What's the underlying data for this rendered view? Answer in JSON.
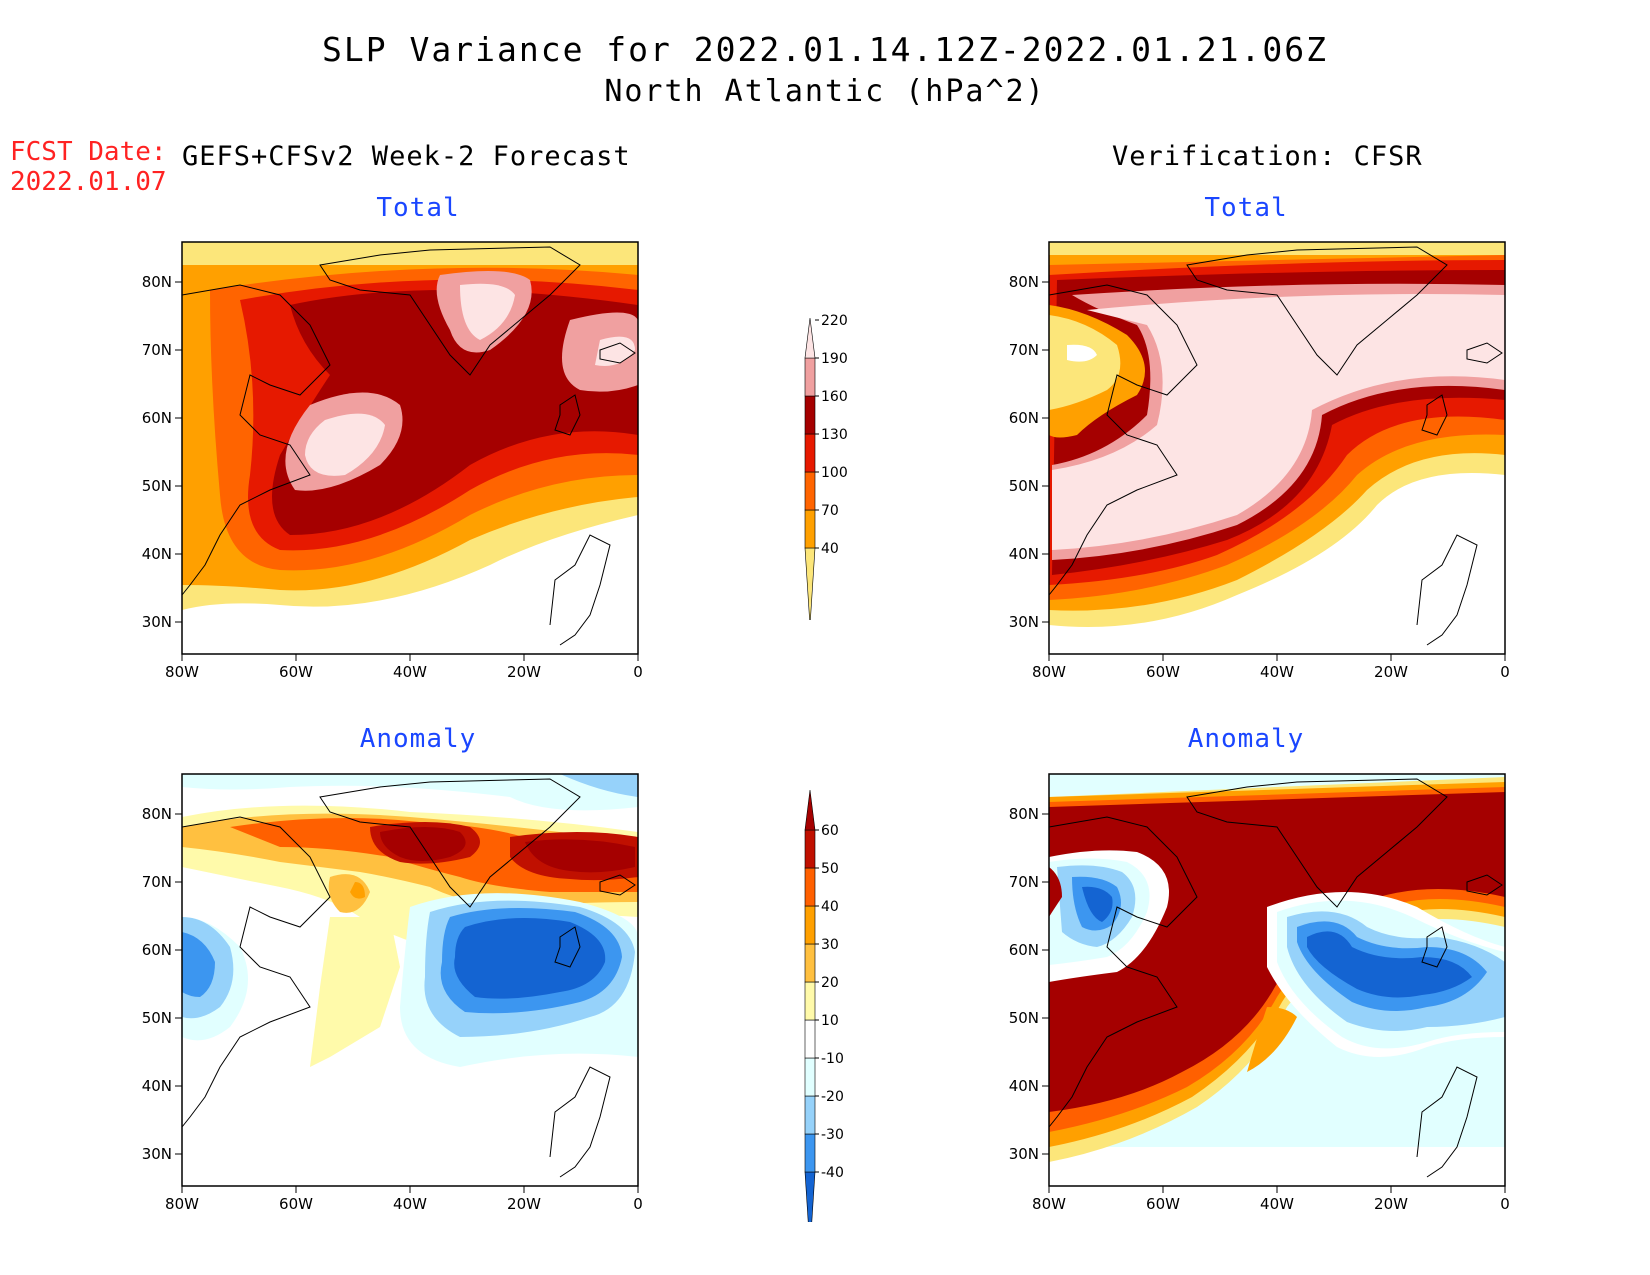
{
  "header": {
    "title_line1": "SLP Variance for 2022.01.14.12Z-2022.01.21.06Z",
    "title_line2": "North Atlantic (hPa^2)"
  },
  "fcst": {
    "label": "FCST Date:",
    "date": "2022.01.07"
  },
  "columns": {
    "left": "GEFS+CFSv2 Week-2 Forecast",
    "right": "Verification: CFSR"
  },
  "panels": {
    "total_label": "Total",
    "anomaly_label": "Anomaly"
  },
  "axes": {
    "lon_ticks": [
      "80W",
      "60W",
      "40W",
      "20W",
      "0"
    ],
    "lat_ticks": [
      "80N",
      "70N",
      "60N",
      "50N",
      "40N",
      "30N"
    ]
  },
  "colorbar_total": {
    "levels": [
      "40",
      "70",
      "100",
      "130",
      "160",
      "190",
      "220"
    ],
    "colors": [
      "#fce67a",
      "#ffa000",
      "#ff6400",
      "#e61900",
      "#a50000",
      "#f0a0a0",
      "#fde4e4"
    ]
  },
  "colorbar_anomaly": {
    "levels": [
      "-40",
      "-30",
      "-20",
      "-10",
      "10",
      "20",
      "30",
      "40",
      "50",
      "60"
    ],
    "colors": [
      "#1464d2",
      "#3c96f0",
      "#96d2fa",
      "#e1ffff",
      "#ffffff",
      "#fffaaa",
      "#ffc040",
      "#ffa000",
      "#ff6000",
      "#c01000",
      "#a50000"
    ]
  },
  "chart_data": {
    "type": "heatmap",
    "region": "North Atlantic",
    "lon_range": [
      -80,
      0
    ],
    "lat_range": [
      25,
      85
    ],
    "units": "hPa^2"
  }
}
